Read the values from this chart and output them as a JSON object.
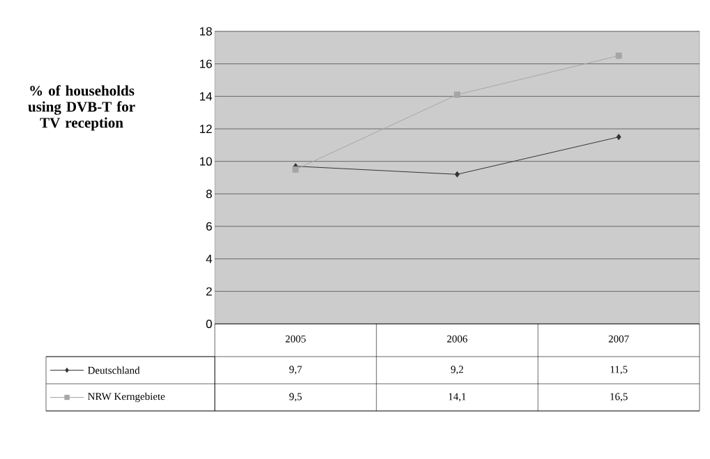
{
  "chart_data": {
    "type": "line",
    "ylabel": "% of households using DVB-T for TV reception",
    "categories": [
      "2005",
      "2006",
      "2007"
    ],
    "series": [
      {
        "name": "Deutschland",
        "color": "#333333",
        "marker": "diamond",
        "values": [
          9.7,
          9.2,
          11.5
        ],
        "value_labels": [
          "9,7",
          "9,2",
          "11,5"
        ]
      },
      {
        "name": "NRW Kerngebiete",
        "color": "#a6a6a6",
        "marker": "square",
        "values": [
          9.5,
          14.1,
          16.5
        ],
        "value_labels": [
          "9,5",
          "14,1",
          "16,5"
        ]
      }
    ],
    "ylim": [
      0,
      18
    ],
    "yticks": [
      0,
      2,
      4,
      6,
      8,
      10,
      12,
      14,
      16,
      18
    ],
    "grid": "y",
    "legend": "bottom left",
    "line_style": "solid"
  }
}
